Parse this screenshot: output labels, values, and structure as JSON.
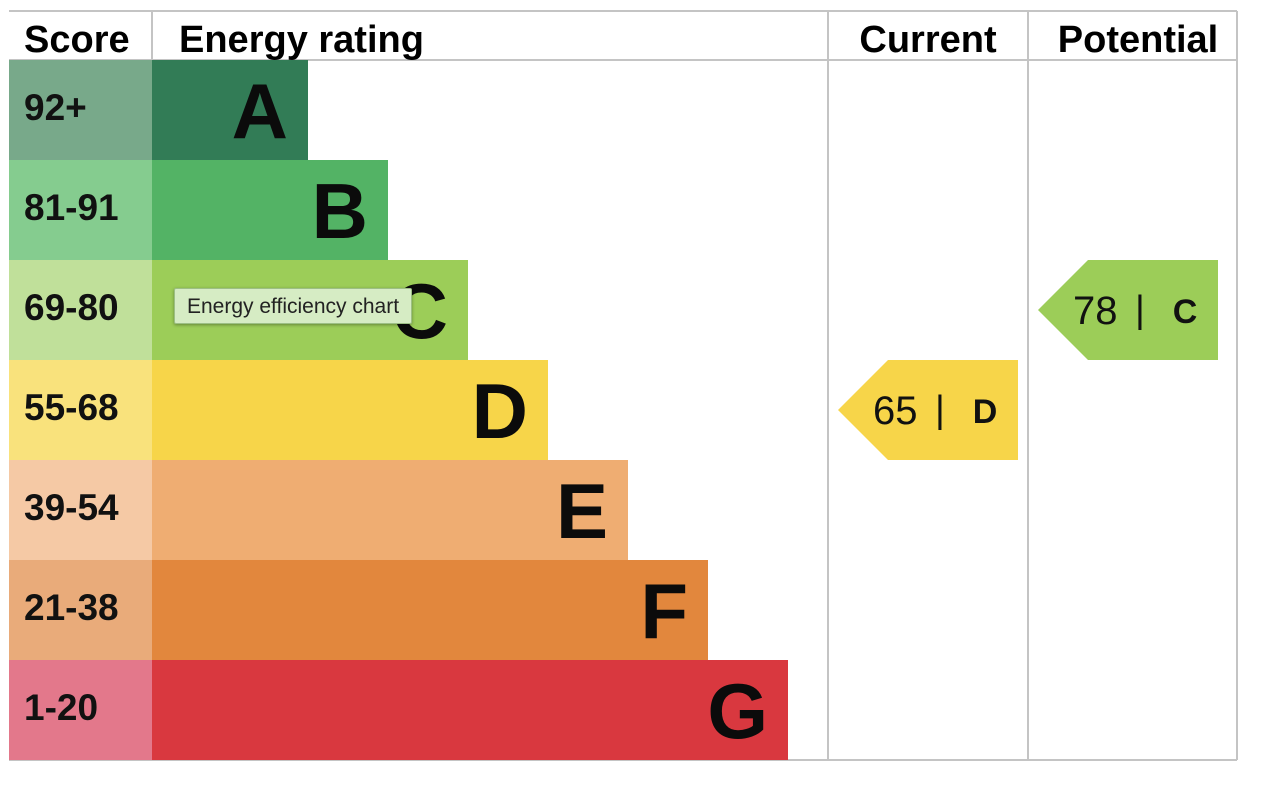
{
  "headers": {
    "score": "Score",
    "rating": "Energy rating",
    "current": "Current",
    "potential": "Potential"
  },
  "tooltip": "Energy efficiency chart",
  "chart_data": {
    "type": "bar",
    "bands": [
      {
        "letter": "A",
        "range": "92+",
        "score_min": 92,
        "score_color": "#78a98a",
        "bar_color": "#327c56"
      },
      {
        "letter": "B",
        "range": "81-91",
        "score_min": 81,
        "score_color": "#85cc8f",
        "bar_color": "#53b365"
      },
      {
        "letter": "C",
        "range": "69-80",
        "score_min": 69,
        "score_color": "#c0e09a",
        "bar_color": "#9ccd58"
      },
      {
        "letter": "D",
        "range": "55-68",
        "score_min": 55,
        "score_color": "#f9e27c",
        "bar_color": "#f7d549"
      },
      {
        "letter": "E",
        "range": "39-54",
        "score_min": 39,
        "score_color": "#f5c9a5",
        "bar_color": "#efad72"
      },
      {
        "letter": "F",
        "range": "21-38",
        "score_min": 21,
        "score_color": "#e9ab7a",
        "bar_color": "#e2873d"
      },
      {
        "letter": "G",
        "range": "1-20",
        "score_min": 1,
        "score_color": "#e3788b",
        "bar_color": "#d9383f"
      }
    ],
    "current": {
      "value": 65,
      "rating": "D",
      "color": "#f7d549"
    },
    "potential": {
      "value": 78,
      "rating": "C",
      "color": "#9ccd58"
    }
  }
}
